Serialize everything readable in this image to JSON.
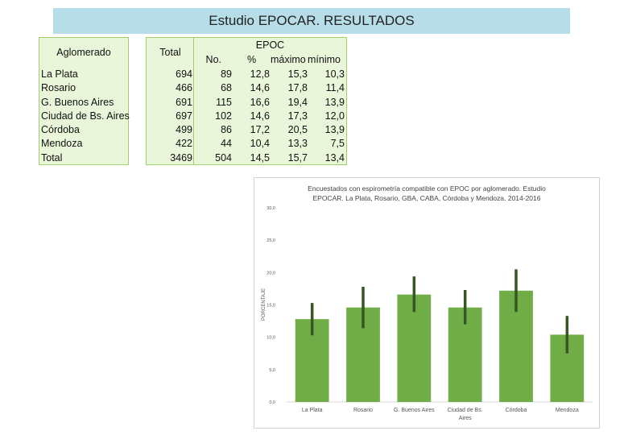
{
  "page_title": "Estudio EPOCAR. RESULTADOS",
  "table": {
    "header_aglomerado": "Aglomerado",
    "header_total": "Total",
    "header_epoc": "EPOC",
    "header_no": "No.",
    "header_pct": "%",
    "header_max": "máximo",
    "header_min": "mínimo",
    "rows": [
      {
        "name": "La Plata",
        "total": "694",
        "no": "89",
        "pct": "12,8",
        "max": "15,3",
        "min": "10,3"
      },
      {
        "name": "Rosario",
        "total": "466",
        "no": "68",
        "pct": "14,6",
        "max": "17,8",
        "min": "11,4"
      },
      {
        "name": "G. Buenos Aires",
        "total": "691",
        "no": "115",
        "pct": "16,6",
        "max": "19,4",
        "min": "13,9"
      },
      {
        "name": "Ciudad de Bs. Aires",
        "total": "697",
        "no": "102",
        "pct": "14,6",
        "max": "17,3",
        "min": "12,0"
      },
      {
        "name": "Córdoba",
        "total": "499",
        "no": "86",
        "pct": "17,2",
        "max": "20,5",
        "min": "13,9"
      },
      {
        "name": "Mendoza",
        "total": "422",
        "no": "44",
        "pct": "10,4",
        "max": "13,3",
        "min": "7,5"
      },
      {
        "name": "Total",
        "total": "3469",
        "no": "504",
        "pct": "14,5",
        "max": "15,7",
        "min": "13,4"
      }
    ]
  },
  "chart_data": {
    "type": "bar",
    "title_line1": "Encuestados con espirometría compatible con EPOC por aglomerado. Estudio",
    "title_line2": "EPOCAR. La Plata, Rosario, GBA, CABA, Córdoba y Mendoza. 2014-2016",
    "ylabel": "PORCENTAJE",
    "xlabel": "",
    "ylim": [
      0,
      30
    ],
    "yticks": [
      0,
      5,
      10,
      15,
      20,
      25,
      30
    ],
    "ytick_labels": [
      "0,0",
      "5,0",
      "10,0",
      "15,0",
      "20,0",
      "25,0",
      "30,0"
    ],
    "categories": [
      "La Plata",
      "Rosario",
      "G. Buenos Aires",
      "Ciudad de Bs. Aires",
      "Córdoba",
      "Mendoza"
    ],
    "category_lines": [
      [
        "La Plata"
      ],
      [
        "Rosario"
      ],
      [
        "G. Buenos Aires"
      ],
      [
        "Ciudad de Bs.",
        "Aires"
      ],
      [
        "Córdoba"
      ],
      [
        "Mendoza"
      ]
    ],
    "values": [
      12.8,
      14.6,
      16.6,
      14.6,
      17.2,
      10.4
    ],
    "error_max": [
      15.3,
      17.8,
      19.4,
      17.3,
      20.5,
      13.3
    ],
    "error_min": [
      10.3,
      11.4,
      13.9,
      12.0,
      13.9,
      7.5
    ],
    "bar_color": "#70ad47",
    "error_color": "#375623",
    "grid": false,
    "legend": "none"
  }
}
